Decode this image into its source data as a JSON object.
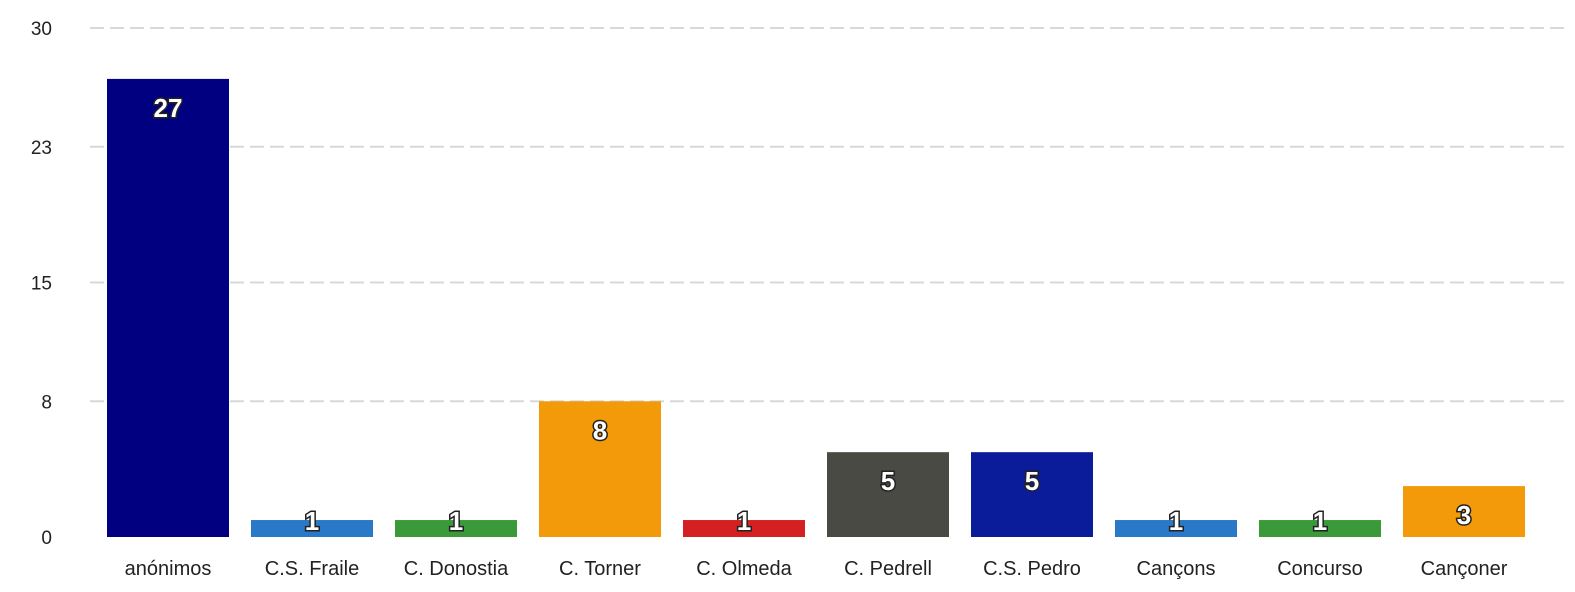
{
  "chart_data": {
    "type": "bar",
    "title": "",
    "xlabel": "",
    "ylabel": "",
    "ylim": [
      0,
      30
    ],
    "yticks": [
      0,
      8,
      15,
      23,
      30
    ],
    "grid": true,
    "legend": "none",
    "categories": [
      "anónimos",
      "C.S. Fraile",
      "C. Donostia",
      "C. Torner",
      "C.  Olmeda",
      "C. Pedrell",
      "C.S. Pedro",
      "Cançons",
      "Concurso",
      "Cançoner"
    ],
    "values": [
      27,
      1,
      1,
      8,
      1,
      5,
      5,
      1,
      1,
      3
    ],
    "data_labels": [
      "27",
      "1",
      "1",
      "8",
      "1",
      "5",
      "5",
      "1",
      "1",
      "3"
    ],
    "colors": [
      "#000080",
      "#2a78c8",
      "#3a9a3a",
      "#f29a0a",
      "#d42020",
      "#4a4a44",
      "#0a1c9a",
      "#2a78c8",
      "#3a9a3a",
      "#f29a0a"
    ]
  }
}
